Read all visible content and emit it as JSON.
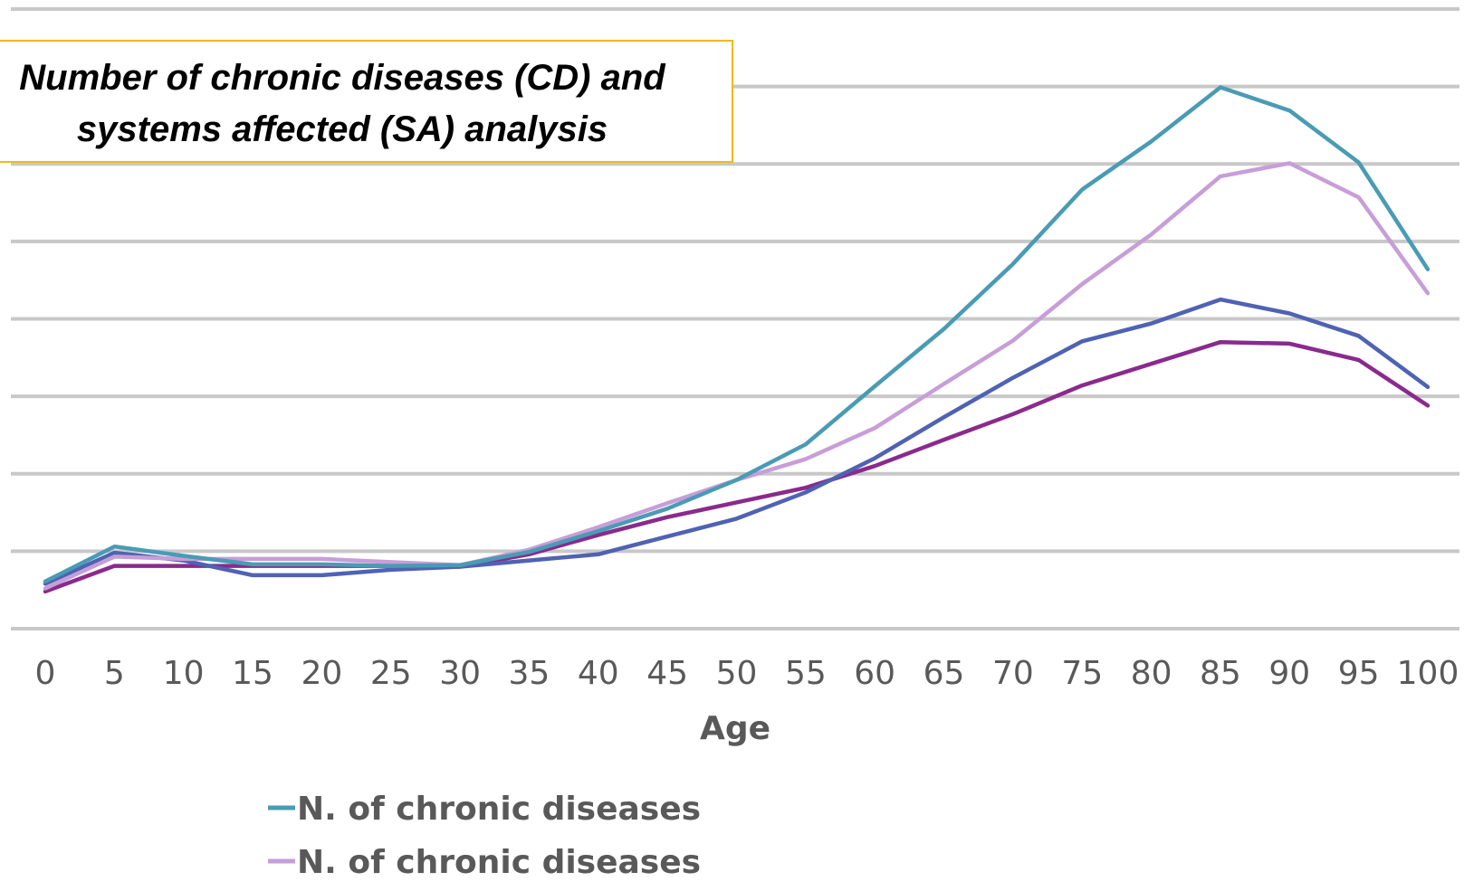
{
  "chart_data": {
    "type": "line",
    "title": "Number of chronic diseases (CD) and systems affected (SA) analysis",
    "xlabel": "Age",
    "ylabel": "",
    "x": [
      0,
      5,
      10,
      15,
      20,
      25,
      30,
      35,
      40,
      45,
      50,
      55,
      60,
      65,
      70,
      75,
      80,
      85,
      90,
      95,
      100
    ],
    "ylim": [
      0,
      8
    ],
    "grid": true,
    "legend_position": "bottom",
    "series": [
      {
        "name": "N. of chronic diseases",
        "color": "#4a9bb4",
        "values": [
          0.61,
          1.06,
          0.94,
          0.83,
          0.83,
          0.81,
          0.82,
          0.99,
          1.26,
          1.55,
          1.92,
          2.38,
          3.13,
          3.87,
          4.71,
          5.67,
          6.29,
          6.99,
          6.69,
          6.02,
          4.64
        ]
      },
      {
        "name": "N. of chronic diseases",
        "color": "#c79ed8",
        "values": [
          0.52,
          0.93,
          0.9,
          0.9,
          0.9,
          0.86,
          0.82,
          1.02,
          1.31,
          1.62,
          1.92,
          2.19,
          2.59,
          3.16,
          3.72,
          4.45,
          5.09,
          5.84,
          6.01,
          5.57,
          4.33
        ]
      },
      {
        "name": "",
        "color": "#4f62b3",
        "values": [
          0.58,
          0.98,
          0.88,
          0.69,
          0.69,
          0.76,
          0.8,
          0.88,
          0.96,
          1.19,
          1.42,
          1.76,
          2.2,
          2.73,
          3.24,
          3.71,
          3.94,
          4.25,
          4.07,
          3.78,
          3.12
        ]
      },
      {
        "name": "",
        "color": "#8a2a8d",
        "values": [
          0.48,
          0.81,
          0.81,
          0.81,
          0.81,
          0.81,
          0.8,
          0.96,
          1.21,
          1.44,
          1.63,
          1.82,
          2.1,
          2.44,
          2.77,
          3.14,
          3.42,
          3.7,
          3.68,
          3.47,
          2.88
        ]
      }
    ]
  }
}
